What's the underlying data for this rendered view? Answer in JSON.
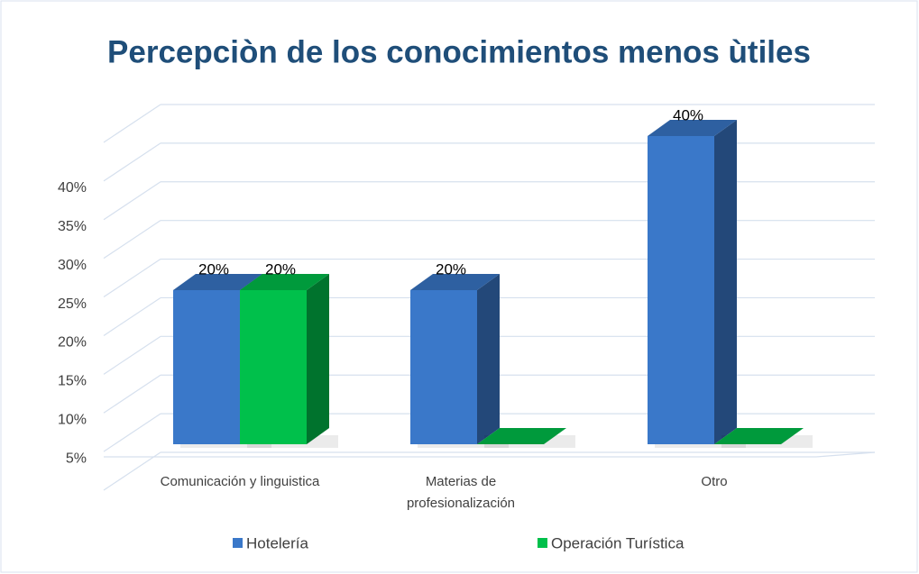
{
  "chart_data": {
    "type": "bar3d",
    "title": "Percepciòn de los conocimientos menos ùtiles",
    "categories": [
      "Comunicación y linguistica",
      "Materias de profesionalización",
      "Otro"
    ],
    "series": [
      {
        "name": "Hotelería",
        "color": "#3a78c9",
        "values": [
          20,
          20,
          40
        ],
        "value_labels": [
          "20%",
          "20%",
          "40%"
        ]
      },
      {
        "name": "Operación Turística",
        "color": "#00c04b",
        "values": [
          20,
          0,
          0
        ],
        "value_labels": [
          "20%",
          null,
          null
        ]
      }
    ],
    "ylim": [
      0,
      45
    ],
    "yticks": [
      {
        "value": 5,
        "label": "5%"
      },
      {
        "value": 10,
        "label": "10%"
      },
      {
        "value": 15,
        "label": "15%"
      },
      {
        "value": 20,
        "label": "20%"
      },
      {
        "value": 25,
        "label": "25%"
      },
      {
        "value": 30,
        "label": "30%"
      },
      {
        "value": 35,
        "label": "35%"
      },
      {
        "value": 40,
        "label": "40%"
      }
    ],
    "grid": true,
    "legend": "bottom"
  }
}
